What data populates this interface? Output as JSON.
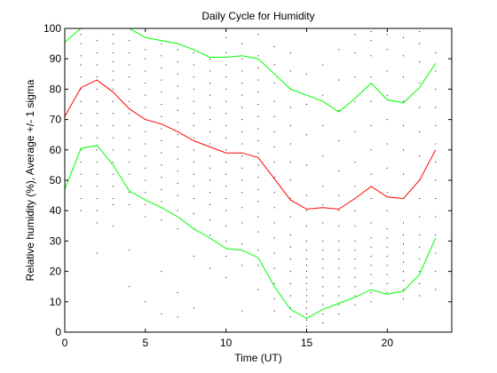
{
  "chart_data": {
    "type": "line",
    "title": "Daily Cycle for Humidity",
    "xlabel": "Time (UT)",
    "ylabel": "Relative humidity (%), Average +/- 1 sigma",
    "xlim": [
      0,
      24
    ],
    "ylim": [
      0,
      100
    ],
    "x_ticks": [
      0,
      5,
      10,
      15,
      20
    ],
    "y_ticks": [
      0,
      10,
      20,
      30,
      40,
      50,
      60,
      70,
      80,
      90,
      100
    ],
    "grid": false,
    "box": true,
    "x": [
      0,
      1,
      2,
      3,
      4,
      5,
      6,
      7,
      8,
      9,
      10,
      11,
      12,
      13,
      14,
      15,
      16,
      17,
      18,
      19,
      20,
      21,
      22,
      23
    ],
    "series": [
      {
        "role": "average",
        "color": "#ff0000",
        "values": [
          71,
          80.5,
          83,
          79,
          73.5,
          70,
          68.5,
          66,
          63,
          61,
          59,
          59,
          57.5,
          50.5,
          43.5,
          40.5,
          41,
          40.5,
          44,
          48,
          44.5,
          44,
          50,
          60
        ]
      },
      {
        "role": "average_plus_1_sigma",
        "color": "#00ff00",
        "values": [
          95.5,
          100,
          101.5,
          101.5,
          100,
          97,
          96,
          95,
          93,
          90.5,
          90.5,
          91,
          90,
          85,
          80,
          78,
          76,
          72.5,
          77,
          82,
          76.5,
          75.5,
          80.5,
          88.5
        ]
      },
      {
        "role": "average_minus_1_sigma",
        "color": "#00ff00",
        "values": [
          47,
          60.5,
          61.5,
          55,
          46.5,
          43.5,
          41,
          38,
          34,
          31,
          27.5,
          27,
          24.5,
          15,
          7.5,
          4.5,
          7.5,
          9.5,
          11.5,
          14,
          12.5,
          13.5,
          19,
          31
        ]
      }
    ],
    "scatter_color": "#000000",
    "scatter": [
      [
        0,
        99
      ],
      [
        0,
        96
      ],
      [
        0,
        93
      ],
      [
        0,
        90
      ],
      [
        0,
        86
      ],
      [
        0,
        82
      ],
      [
        0,
        78
      ],
      [
        0,
        74
      ],
      [
        0,
        69
      ],
      [
        0,
        66
      ],
      [
        0,
        63
      ],
      [
        0,
        58
      ],
      [
        0,
        55
      ],
      [
        0,
        51
      ],
      [
        0,
        48
      ],
      [
        0,
        44
      ],
      [
        0,
        40
      ],
      [
        1,
        98
      ],
      [
        1,
        95
      ],
      [
        1,
        91
      ],
      [
        1,
        88
      ],
      [
        1,
        84
      ],
      [
        1,
        80
      ],
      [
        1,
        76
      ],
      [
        1,
        72
      ],
      [
        1,
        68
      ],
      [
        1,
        64
      ],
      [
        1,
        60
      ],
      [
        1,
        56
      ],
      [
        1,
        52
      ],
      [
        1,
        48
      ],
      [
        1,
        44
      ],
      [
        1,
        40
      ],
      [
        2,
        96
      ],
      [
        2,
        92
      ],
      [
        2,
        88
      ],
      [
        2,
        84
      ],
      [
        2,
        80
      ],
      [
        2,
        76
      ],
      [
        2,
        72
      ],
      [
        2,
        68
      ],
      [
        2,
        64
      ],
      [
        2,
        60
      ],
      [
        2,
        56
      ],
      [
        2,
        52
      ],
      [
        2,
        48
      ],
      [
        2,
        44
      ],
      [
        2,
        40
      ],
      [
        2,
        36
      ],
      [
        2,
        26
      ],
      [
        3,
        98
      ],
      [
        3,
        95
      ],
      [
        3,
        92
      ],
      [
        3,
        89
      ],
      [
        3,
        86
      ],
      [
        3,
        83
      ],
      [
        3,
        80
      ],
      [
        3,
        76
      ],
      [
        3,
        72
      ],
      [
        3,
        68
      ],
      [
        3,
        64
      ],
      [
        3,
        60
      ],
      [
        3,
        56
      ],
      [
        3,
        52
      ],
      [
        3,
        48
      ],
      [
        3,
        44
      ],
      [
        3,
        42
      ],
      [
        3,
        35
      ],
      [
        4,
        96
      ],
      [
        4,
        92
      ],
      [
        4,
        88
      ],
      [
        4,
        84
      ],
      [
        4,
        80
      ],
      [
        4,
        76
      ],
      [
        4,
        72
      ],
      [
        4,
        68
      ],
      [
        4,
        64
      ],
      [
        4,
        60
      ],
      [
        4,
        56
      ],
      [
        4,
        52
      ],
      [
        4,
        46
      ],
      [
        4,
        42
      ],
      [
        4,
        27
      ],
      [
        4,
        15
      ],
      [
        5,
        93
      ],
      [
        5,
        90
      ],
      [
        5,
        86
      ],
      [
        5,
        82
      ],
      [
        5,
        78
      ],
      [
        5,
        74
      ],
      [
        5,
        70
      ],
      [
        5,
        66
      ],
      [
        5,
        62
      ],
      [
        5,
        58
      ],
      [
        5,
        54
      ],
      [
        5,
        50
      ],
      [
        5,
        46
      ],
      [
        5,
        42
      ],
      [
        5,
        38
      ],
      [
        5,
        10
      ],
      [
        6,
        95
      ],
      [
        6,
        91
      ],
      [
        6,
        87
      ],
      [
        6,
        83
      ],
      [
        6,
        79
      ],
      [
        6,
        75
      ],
      [
        6,
        71
      ],
      [
        6,
        67
      ],
      [
        6,
        63
      ],
      [
        6,
        59
      ],
      [
        6,
        55
      ],
      [
        6,
        51
      ],
      [
        6,
        47
      ],
      [
        6,
        43
      ],
      [
        6,
        37
      ],
      [
        6,
        20
      ],
      [
        6,
        6
      ],
      [
        7,
        93
      ],
      [
        7,
        89
      ],
      [
        7,
        85
      ],
      [
        7,
        81
      ],
      [
        7,
        77
      ],
      [
        7,
        73
      ],
      [
        7,
        69
      ],
      [
        7,
        65
      ],
      [
        7,
        61
      ],
      [
        7,
        57
      ],
      [
        7,
        53
      ],
      [
        7,
        49
      ],
      [
        7,
        45
      ],
      [
        7,
        40
      ],
      [
        7,
        34
      ],
      [
        7,
        13
      ],
      [
        7,
        5
      ],
      [
        8,
        92
      ],
      [
        8,
        88
      ],
      [
        8,
        84
      ],
      [
        8,
        80
      ],
      [
        8,
        76
      ],
      [
        8,
        72
      ],
      [
        8,
        68
      ],
      [
        8,
        64
      ],
      [
        8,
        60
      ],
      [
        8,
        56
      ],
      [
        8,
        52
      ],
      [
        8,
        48
      ],
      [
        8,
        44
      ],
      [
        8,
        39
      ],
      [
        8,
        34
      ],
      [
        8,
        25
      ],
      [
        8,
        8
      ],
      [
        9,
        90
      ],
      [
        9,
        86
      ],
      [
        9,
        82
      ],
      [
        9,
        78
      ],
      [
        9,
        74
      ],
      [
        9,
        70
      ],
      [
        9,
        66
      ],
      [
        9,
        62
      ],
      [
        9,
        58
      ],
      [
        9,
        54
      ],
      [
        9,
        50
      ],
      [
        9,
        46
      ],
      [
        9,
        42
      ],
      [
        9,
        37
      ],
      [
        9,
        32
      ],
      [
        9,
        21
      ],
      [
        10,
        97
      ],
      [
        10,
        92
      ],
      [
        10,
        88
      ],
      [
        10,
        84
      ],
      [
        10,
        80
      ],
      [
        10,
        76
      ],
      [
        10,
        72
      ],
      [
        10,
        68
      ],
      [
        10,
        64
      ],
      [
        10,
        60
      ],
      [
        10,
        56
      ],
      [
        10,
        52
      ],
      [
        10,
        48
      ],
      [
        10,
        44
      ],
      [
        10,
        40
      ],
      [
        10,
        35
      ],
      [
        10,
        30
      ],
      [
        10,
        25
      ],
      [
        10,
        18
      ],
      [
        11,
        95
      ],
      [
        11,
        90
      ],
      [
        11,
        86
      ],
      [
        11,
        82
      ],
      [
        11,
        78
      ],
      [
        11,
        74
      ],
      [
        11,
        70
      ],
      [
        11,
        66
      ],
      [
        11,
        62
      ],
      [
        11,
        58
      ],
      [
        11,
        54
      ],
      [
        11,
        50
      ],
      [
        11,
        46
      ],
      [
        11,
        41
      ],
      [
        11,
        36
      ],
      [
        11,
        29
      ],
      [
        11,
        22
      ],
      [
        11,
        7
      ],
      [
        12,
        98
      ],
      [
        12,
        91
      ],
      [
        12,
        87
      ],
      [
        12,
        83
      ],
      [
        12,
        79
      ],
      [
        12,
        75
      ],
      [
        12,
        71
      ],
      [
        12,
        67
      ],
      [
        12,
        63
      ],
      [
        12,
        59
      ],
      [
        12,
        55
      ],
      [
        12,
        51
      ],
      [
        12,
        47
      ],
      [
        12,
        43
      ],
      [
        12,
        38
      ],
      [
        12,
        33
      ],
      [
        12,
        27
      ],
      [
        12,
        22
      ],
      [
        12,
        14
      ],
      [
        13,
        94
      ],
      [
        13,
        88
      ],
      [
        13,
        82
      ],
      [
        13,
        76
      ],
      [
        13,
        71
      ],
      [
        13,
        66
      ],
      [
        13,
        61
      ],
      [
        13,
        56
      ],
      [
        13,
        51
      ],
      [
        13,
        46
      ],
      [
        13,
        41
      ],
      [
        13,
        36
      ],
      [
        13,
        31
      ],
      [
        13,
        26
      ],
      [
        13,
        21
      ],
      [
        13,
        16
      ],
      [
        13,
        11
      ],
      [
        13,
        7
      ],
      [
        14,
        92
      ],
      [
        14,
        86
      ],
      [
        14,
        80
      ],
      [
        14,
        74
      ],
      [
        14,
        68
      ],
      [
        14,
        62
      ],
      [
        14,
        56
      ],
      [
        14,
        50
      ],
      [
        14,
        44
      ],
      [
        14,
        38
      ],
      [
        14,
        32
      ],
      [
        14,
        28
      ],
      [
        14,
        24
      ],
      [
        14,
        20
      ],
      [
        14,
        16
      ],
      [
        14,
        12
      ],
      [
        14,
        8
      ],
      [
        14,
        5
      ],
      [
        15,
        99
      ],
      [
        15,
        85
      ],
      [
        15,
        75
      ],
      [
        15,
        65
      ],
      [
        15,
        55
      ],
      [
        15,
        45
      ],
      [
        15,
        40
      ],
      [
        15,
        35
      ],
      [
        15,
        30
      ],
      [
        15,
        27
      ],
      [
        15,
        24
      ],
      [
        15,
        22
      ],
      [
        15,
        20
      ],
      [
        15,
        18
      ],
      [
        15,
        16
      ],
      [
        15,
        14
      ],
      [
        15,
        12
      ],
      [
        15,
        10
      ],
      [
        15,
        8
      ],
      [
        15,
        6
      ],
      [
        15,
        4
      ],
      [
        15,
        2
      ],
      [
        16,
        88
      ],
      [
        16,
        78
      ],
      [
        16,
        68
      ],
      [
        16,
        58
      ],
      [
        16,
        48
      ],
      [
        16,
        42
      ],
      [
        16,
        36
      ],
      [
        16,
        30
      ],
      [
        16,
        27
      ],
      [
        16,
        24
      ],
      [
        16,
        21
      ],
      [
        16,
        18
      ],
      [
        16,
        15
      ],
      [
        16,
        12
      ],
      [
        16,
        9
      ],
      [
        16,
        6
      ],
      [
        16,
        3
      ],
      [
        17,
        93
      ],
      [
        17,
        83
      ],
      [
        17,
        73
      ],
      [
        17,
        63
      ],
      [
        17,
        53
      ],
      [
        17,
        45
      ],
      [
        17,
        40
      ],
      [
        17,
        35
      ],
      [
        17,
        30
      ],
      [
        17,
        27
      ],
      [
        17,
        24
      ],
      [
        17,
        21
      ],
      [
        17,
        18
      ],
      [
        17,
        15
      ],
      [
        17,
        12
      ],
      [
        17,
        9
      ],
      [
        17,
        6
      ],
      [
        18,
        98
      ],
      [
        18,
        92
      ],
      [
        18,
        84
      ],
      [
        18,
        76
      ],
      [
        18,
        66
      ],
      [
        18,
        56
      ],
      [
        18,
        48
      ],
      [
        18,
        40
      ],
      [
        18,
        35
      ],
      [
        18,
        30
      ],
      [
        18,
        27
      ],
      [
        18,
        24
      ],
      [
        18,
        21
      ],
      [
        18,
        18
      ],
      [
        18,
        15
      ],
      [
        18,
        12
      ],
      [
        18,
        9
      ],
      [
        19,
        99
      ],
      [
        19,
        96
      ],
      [
        19,
        91
      ],
      [
        19,
        84
      ],
      [
        19,
        76
      ],
      [
        19,
        68
      ],
      [
        19,
        60
      ],
      [
        19,
        52
      ],
      [
        19,
        44
      ],
      [
        19,
        36
      ],
      [
        19,
        31
      ],
      [
        19,
        28
      ],
      [
        19,
        25
      ],
      [
        19,
        22
      ],
      [
        19,
        19
      ],
      [
        19,
        16
      ],
      [
        19,
        13
      ],
      [
        19,
        10
      ],
      [
        20,
        98
      ],
      [
        20,
        93
      ],
      [
        20,
        86
      ],
      [
        20,
        78
      ],
      [
        20,
        70
      ],
      [
        20,
        62
      ],
      [
        20,
        54
      ],
      [
        20,
        46
      ],
      [
        20,
        40
      ],
      [
        20,
        34
      ],
      [
        20,
        31
      ],
      [
        20,
        28
      ],
      [
        20,
        25
      ],
      [
        20,
        22
      ],
      [
        20,
        19
      ],
      [
        20,
        16
      ],
      [
        20,
        13
      ],
      [
        21,
        97
      ],
      [
        21,
        91
      ],
      [
        21,
        84
      ],
      [
        21,
        76
      ],
      [
        21,
        68
      ],
      [
        21,
        60
      ],
      [
        21,
        52
      ],
      [
        21,
        44
      ],
      [
        21,
        36
      ],
      [
        21,
        32
      ],
      [
        21,
        29
      ],
      [
        21,
        26
      ],
      [
        21,
        23
      ],
      [
        21,
        20
      ],
      [
        21,
        17
      ],
      [
        21,
        14
      ],
      [
        21,
        11
      ],
      [
        22,
        99
      ],
      [
        22,
        95
      ],
      [
        22,
        89
      ],
      [
        22,
        82
      ],
      [
        22,
        74
      ],
      [
        22,
        66
      ],
      [
        22,
        58
      ],
      [
        22,
        50
      ],
      [
        22,
        44
      ],
      [
        22,
        38
      ],
      [
        22,
        32
      ],
      [
        22,
        28
      ],
      [
        22,
        24
      ],
      [
        22,
        20
      ],
      [
        22,
        16
      ],
      [
        22,
        12
      ],
      [
        23,
        92
      ],
      [
        23,
        86
      ],
      [
        23,
        80
      ],
      [
        23,
        74
      ],
      [
        23,
        68
      ],
      [
        23,
        62
      ],
      [
        23,
        56
      ],
      [
        23,
        50
      ],
      [
        23,
        44
      ],
      [
        23,
        38
      ],
      [
        23,
        32
      ],
      [
        23,
        26
      ],
      [
        23,
        20
      ],
      [
        23,
        14
      ]
    ]
  }
}
